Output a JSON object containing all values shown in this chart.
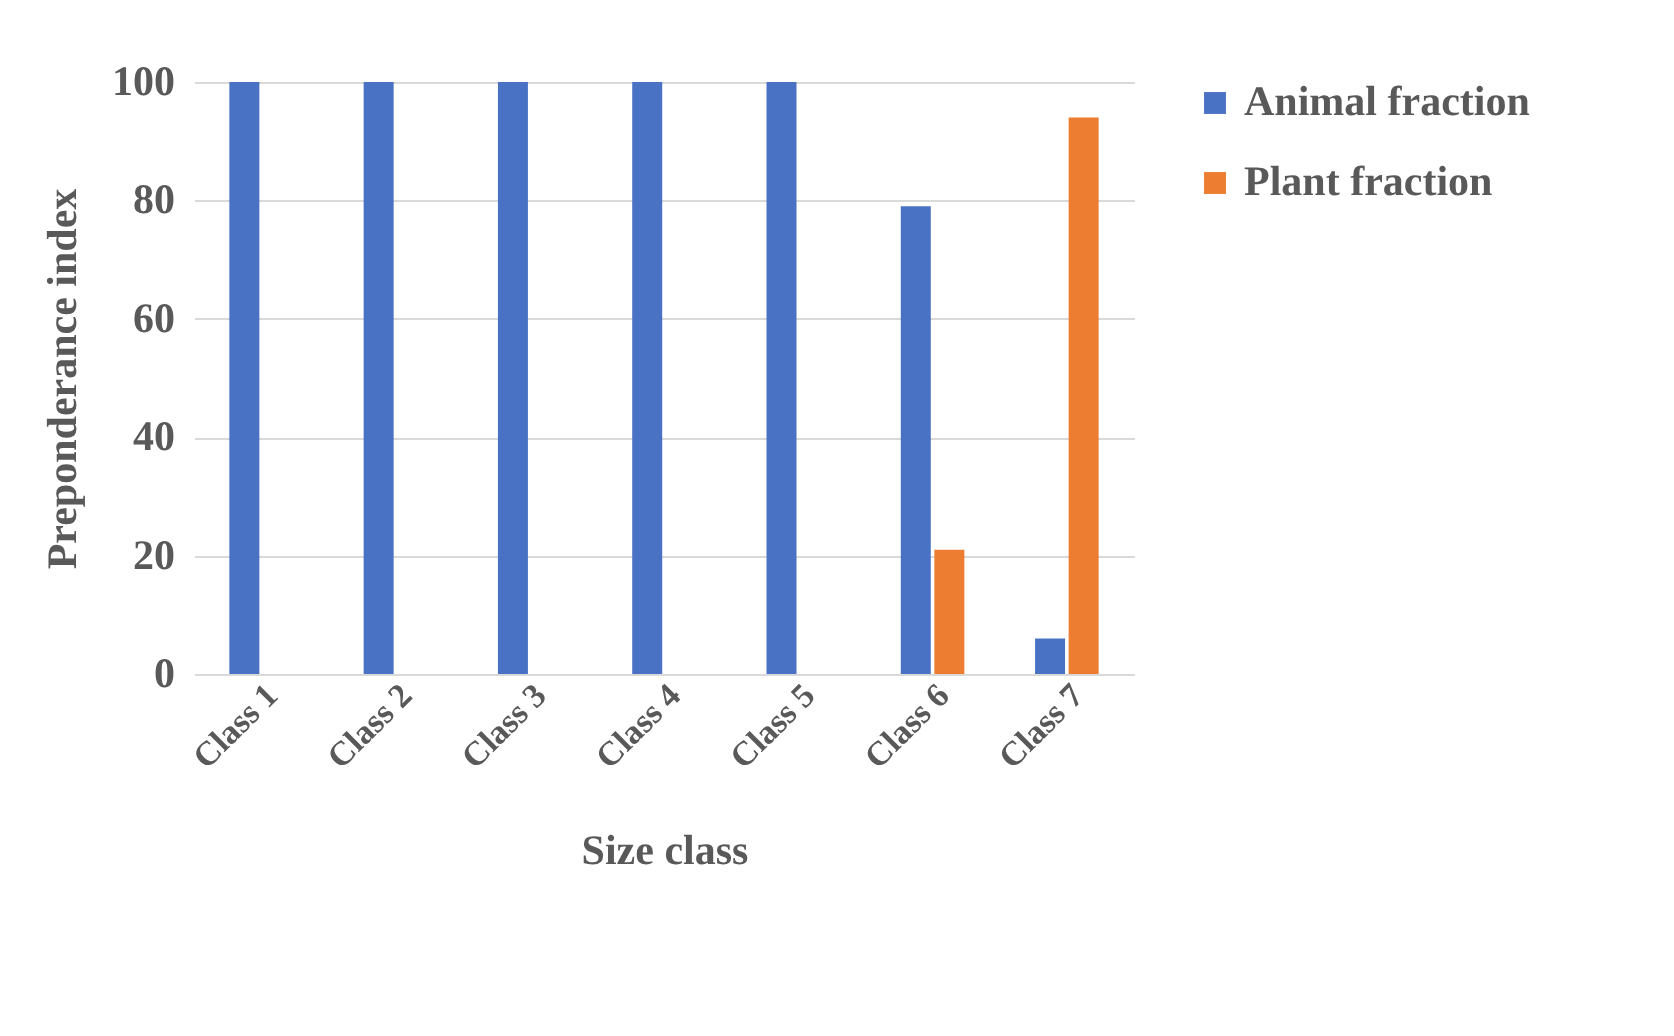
{
  "chart_data": {
    "type": "bar",
    "xlabel": "Size class",
    "ylabel": "Preponderance index",
    "categories": [
      "Class 1",
      "Class 2",
      "Class 3",
      "Class 4",
      "Class 5",
      "Class 6",
      "Class 7"
    ],
    "series": [
      {
        "name": "Animal fraction",
        "color": "#4a72c4",
        "values": [
          100,
          100,
          100,
          100,
          100,
          79,
          6
        ]
      },
      {
        "name": "Plant fraction",
        "color": "#ed7d31",
        "values": [
          0,
          0,
          0,
          0,
          0,
          21,
          94
        ]
      }
    ],
    "ylim": [
      0,
      100
    ],
    "yticks": [
      0,
      20,
      40,
      60,
      80,
      100
    ],
    "grid": "y",
    "legend": "right"
  }
}
